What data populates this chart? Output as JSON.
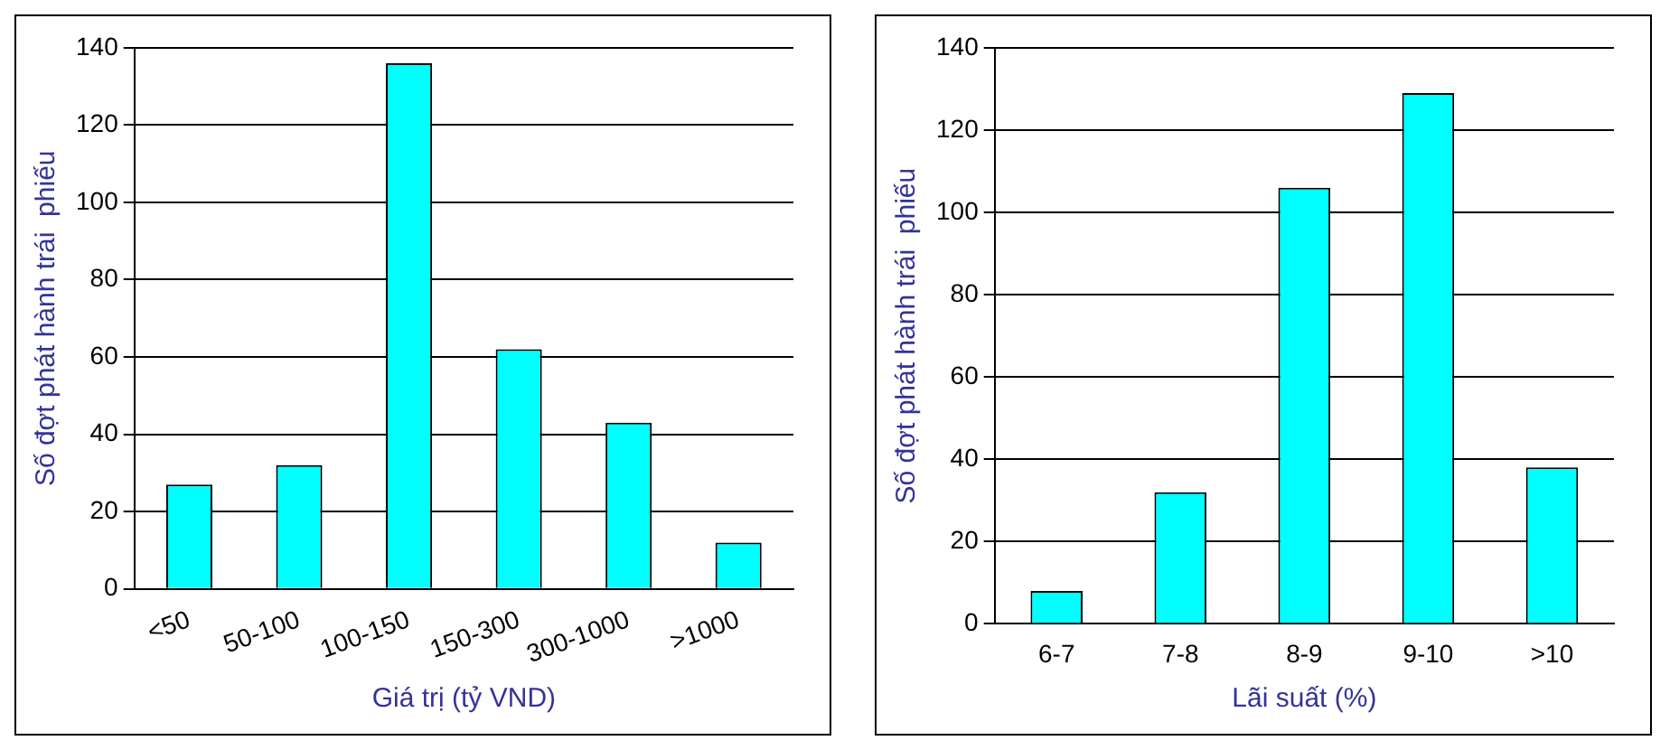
{
  "chart_data": [
    {
      "type": "bar",
      "categories": [
        "<50",
        "50-100",
        "100-150",
        "150-300",
        "300-1000",
        ">1000"
      ],
      "values": [
        27,
        32,
        136,
        62,
        43,
        12
      ],
      "color": "#00ffff",
      "xlabel": "Giá trị (tỷ VND)",
      "ylabel": "Số đợt phát hành trái  phiếu",
      "ylim": [
        0,
        140
      ],
      "yticks": [
        0,
        20,
        40,
        60,
        80,
        100,
        120,
        140
      ],
      "grid": "y",
      "legend": false
    },
    {
      "type": "bar",
      "categories": [
        "6-7",
        "7-8",
        "8-9",
        "9-10",
        ">10"
      ],
      "values": [
        8,
        32,
        106,
        129,
        38
      ],
      "color": "#00ffff",
      "xlabel": "Lãi suất (%)",
      "ylabel": "Số đợt phát hành trái  phiếu",
      "ylim": [
        0,
        140
      ],
      "yticks": [
        0,
        20,
        40,
        60,
        80,
        100,
        120,
        140
      ],
      "grid": "y",
      "legend": false
    }
  ]
}
